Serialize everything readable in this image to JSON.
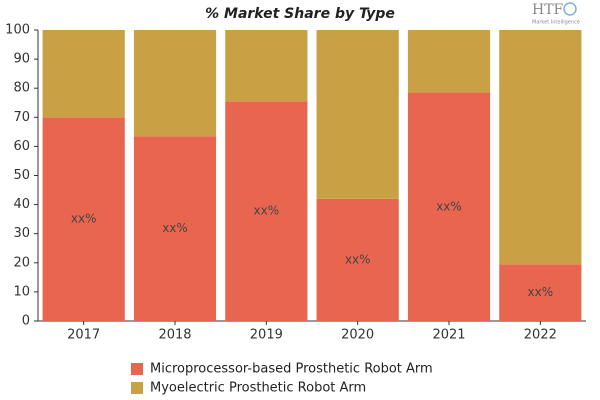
{
  "chart_data": {
    "type": "stacked_bar",
    "title": "% Market Share by Type",
    "logo": {
      "name": "HTF",
      "tagline": "Market Intelligence"
    },
    "categories": [
      "2017",
      "2018",
      "2019",
      "2020",
      "2021",
      "2022"
    ],
    "series": [
      {
        "name": "Microprocessor-based Prosthetic Robot Arm",
        "color": "#e8664f",
        "values": [
          70,
          63.5,
          75.5,
          42,
          78.5,
          19.5
        ],
        "value_labels": [
          "xx%",
          "xx%",
          "xx%",
          "xx%",
          "xx%",
          "xx%"
        ]
      },
      {
        "name": "Myoelectric Prosthetic Robot Arm",
        "color": "#c9a043",
        "values": [
          30,
          36.5,
          24.5,
          58,
          21.5,
          80.5
        ]
      }
    ],
    "ylim": [
      0,
      100
    ],
    "yticks": [
      0,
      10,
      20,
      30,
      40,
      50,
      60,
      70,
      80,
      90,
      100
    ],
    "grid": false
  }
}
